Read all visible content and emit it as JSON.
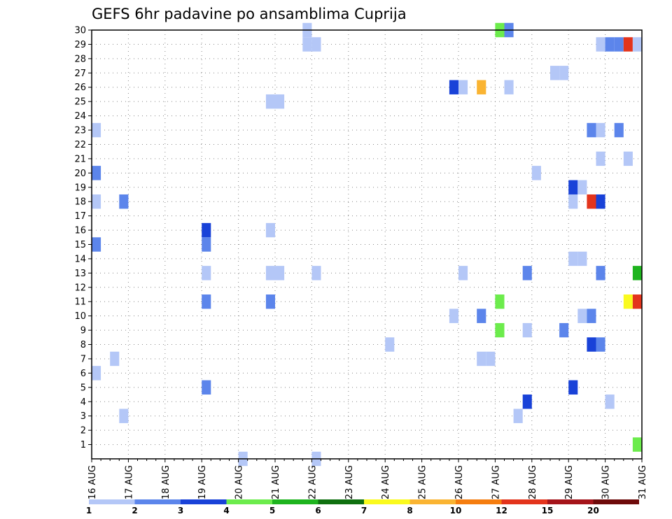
{
  "chart_data": {
    "type": "heatmap",
    "title": "GEFS 6hr padavine po ansamblima Cuprija",
    "x_labels": [
      "16 AUG",
      "17 AUG",
      "18 AUG",
      "19 AUG",
      "20 AUG",
      "21 AUG",
      "22 AUG",
      "23 AUG",
      "24 AUG",
      "25 AUG",
      "26 AUG",
      "27 AUG",
      "28 AUG",
      "29 AUG",
      "30 AUG",
      "31 AUG"
    ],
    "y_labels": [
      "1",
      "2",
      "3",
      "4",
      "5",
      "6",
      "7",
      "8",
      "9",
      "10",
      "11",
      "12",
      "13",
      "14",
      "15",
      "16",
      "17",
      "18",
      "19",
      "20",
      "21",
      "22",
      "23",
      "24",
      "25",
      "26",
      "27",
      "28",
      "29",
      "30"
    ],
    "x_range": [
      0,
      60
    ],
    "y_range": [
      0,
      30
    ],
    "grid": true,
    "colorbar": {
      "labels": [
        "1",
        "2",
        "3",
        "4",
        "5",
        "6",
        "7",
        "8",
        "10",
        "12",
        "15",
        "20"
      ],
      "colors": [
        "#b4c7f7",
        "#5c85eb",
        "#1942d8",
        "#6cec4c",
        "#1eb41e",
        "#0f700f",
        "#fafa1e",
        "#fab432",
        "#f57d0f",
        "#e3341c",
        "#a5141a",
        "#6e0a0a"
      ]
    },
    "cells": [
      {
        "t": 0,
        "m": 23,
        "c": 1
      },
      {
        "t": 0,
        "m": 20,
        "c": 2
      },
      {
        "t": 0,
        "m": 18,
        "c": 1
      },
      {
        "t": 0,
        "m": 15,
        "c": 2
      },
      {
        "t": 0,
        "m": 6,
        "c": 1
      },
      {
        "t": 2,
        "m": 7,
        "c": 1
      },
      {
        "t": 3,
        "m": 18,
        "c": 2
      },
      {
        "t": 3,
        "m": 3,
        "c": 1
      },
      {
        "t": 12,
        "m": 16,
        "c": 3
      },
      {
        "t": 12,
        "m": 15,
        "c": 2
      },
      {
        "t": 12,
        "m": 13,
        "c": 1
      },
      {
        "t": 12,
        "m": 11,
        "c": 2
      },
      {
        "t": 12,
        "m": 5,
        "c": 2
      },
      {
        "t": 16,
        "m": 0,
        "c": 1
      },
      {
        "t": 19,
        "m": 25,
        "c": 1
      },
      {
        "t": 20,
        "m": 25,
        "c": 1
      },
      {
        "t": 19,
        "m": 16,
        "c": 1
      },
      {
        "t": 19,
        "m": 13,
        "c": 1
      },
      {
        "t": 20,
        "m": 13,
        "c": 1
      },
      {
        "t": 19,
        "m": 11,
        "c": 2
      },
      {
        "t": 23,
        "m": 30,
        "c": 1
      },
      {
        "t": 23,
        "m": 29,
        "c": 1
      },
      {
        "t": 24,
        "m": 29,
        "c": 1
      },
      {
        "t": 24,
        "m": 13,
        "c": 1
      },
      {
        "t": 24,
        "m": 0,
        "c": 1
      },
      {
        "t": 32,
        "m": 8,
        "c": 1
      },
      {
        "t": 39,
        "m": 10,
        "c": 1
      },
      {
        "t": 39,
        "m": 26,
        "c": 3
      },
      {
        "t": 40,
        "m": 26,
        "c": 1
      },
      {
        "t": 40,
        "m": 13,
        "c": 1
      },
      {
        "t": 42,
        "m": 26,
        "c": 8
      },
      {
        "t": 42,
        "m": 10,
        "c": 2
      },
      {
        "t": 42,
        "m": 7,
        "c": 1
      },
      {
        "t": 43,
        "m": 7,
        "c": 1
      },
      {
        "t": 44,
        "m": 30,
        "c": 4
      },
      {
        "t": 44,
        "m": 11,
        "c": 4
      },
      {
        "t": 44,
        "m": 9,
        "c": 4
      },
      {
        "t": 45,
        "m": 30,
        "c": 2
      },
      {
        "t": 45,
        "m": 26,
        "c": 1
      },
      {
        "t": 46,
        "m": 3,
        "c": 1
      },
      {
        "t": 47,
        "m": 13,
        "c": 2
      },
      {
        "t": 47,
        "m": 9,
        "c": 1
      },
      {
        "t": 47,
        "m": 4,
        "c": 3
      },
      {
        "t": 48,
        "m": 20,
        "c": 1
      },
      {
        "t": 50,
        "m": 27,
        "c": 1
      },
      {
        "t": 51,
        "m": 27,
        "c": 1
      },
      {
        "t": 51,
        "m": 9,
        "c": 2
      },
      {
        "t": 52,
        "m": 19,
        "c": 3
      },
      {
        "t": 52,
        "m": 18,
        "c": 1
      },
      {
        "t": 52,
        "m": 14,
        "c": 1
      },
      {
        "t": 52,
        "m": 5,
        "c": 3
      },
      {
        "t": 53,
        "m": 19,
        "c": 1
      },
      {
        "t": 53,
        "m": 14,
        "c": 1
      },
      {
        "t": 53,
        "m": 10,
        "c": 1
      },
      {
        "t": 54,
        "m": 23,
        "c": 2
      },
      {
        "t": 54,
        "m": 18,
        "c": 10
      },
      {
        "t": 54,
        "m": 10,
        "c": 2
      },
      {
        "t": 54,
        "m": 8,
        "c": 3
      },
      {
        "t": 55,
        "m": 29,
        "c": 1
      },
      {
        "t": 55,
        "m": 23,
        "c": 1
      },
      {
        "t": 55,
        "m": 21,
        "c": 1
      },
      {
        "t": 55,
        "m": 18,
        "c": 3
      },
      {
        "t": 55,
        "m": 13,
        "c": 2
      },
      {
        "t": 55,
        "m": 8,
        "c": 2
      },
      {
        "t": 56,
        "m": 29,
        "c": 2
      },
      {
        "t": 56,
        "m": 4,
        "c": 1
      },
      {
        "t": 57,
        "m": 29,
        "c": 2
      },
      {
        "t": 57,
        "m": 23,
        "c": 2
      },
      {
        "t": 58,
        "m": 29,
        "c": 10
      },
      {
        "t": 58,
        "m": 21,
        "c": 1
      },
      {
        "t": 58,
        "m": 11,
        "c": 7
      },
      {
        "t": 59,
        "m": 29,
        "c": 1
      },
      {
        "t": 59,
        "m": 13,
        "c": 5
      },
      {
        "t": 59,
        "m": 11,
        "c": 10
      },
      {
        "t": 59,
        "m": 1,
        "c": 4
      }
    ]
  }
}
